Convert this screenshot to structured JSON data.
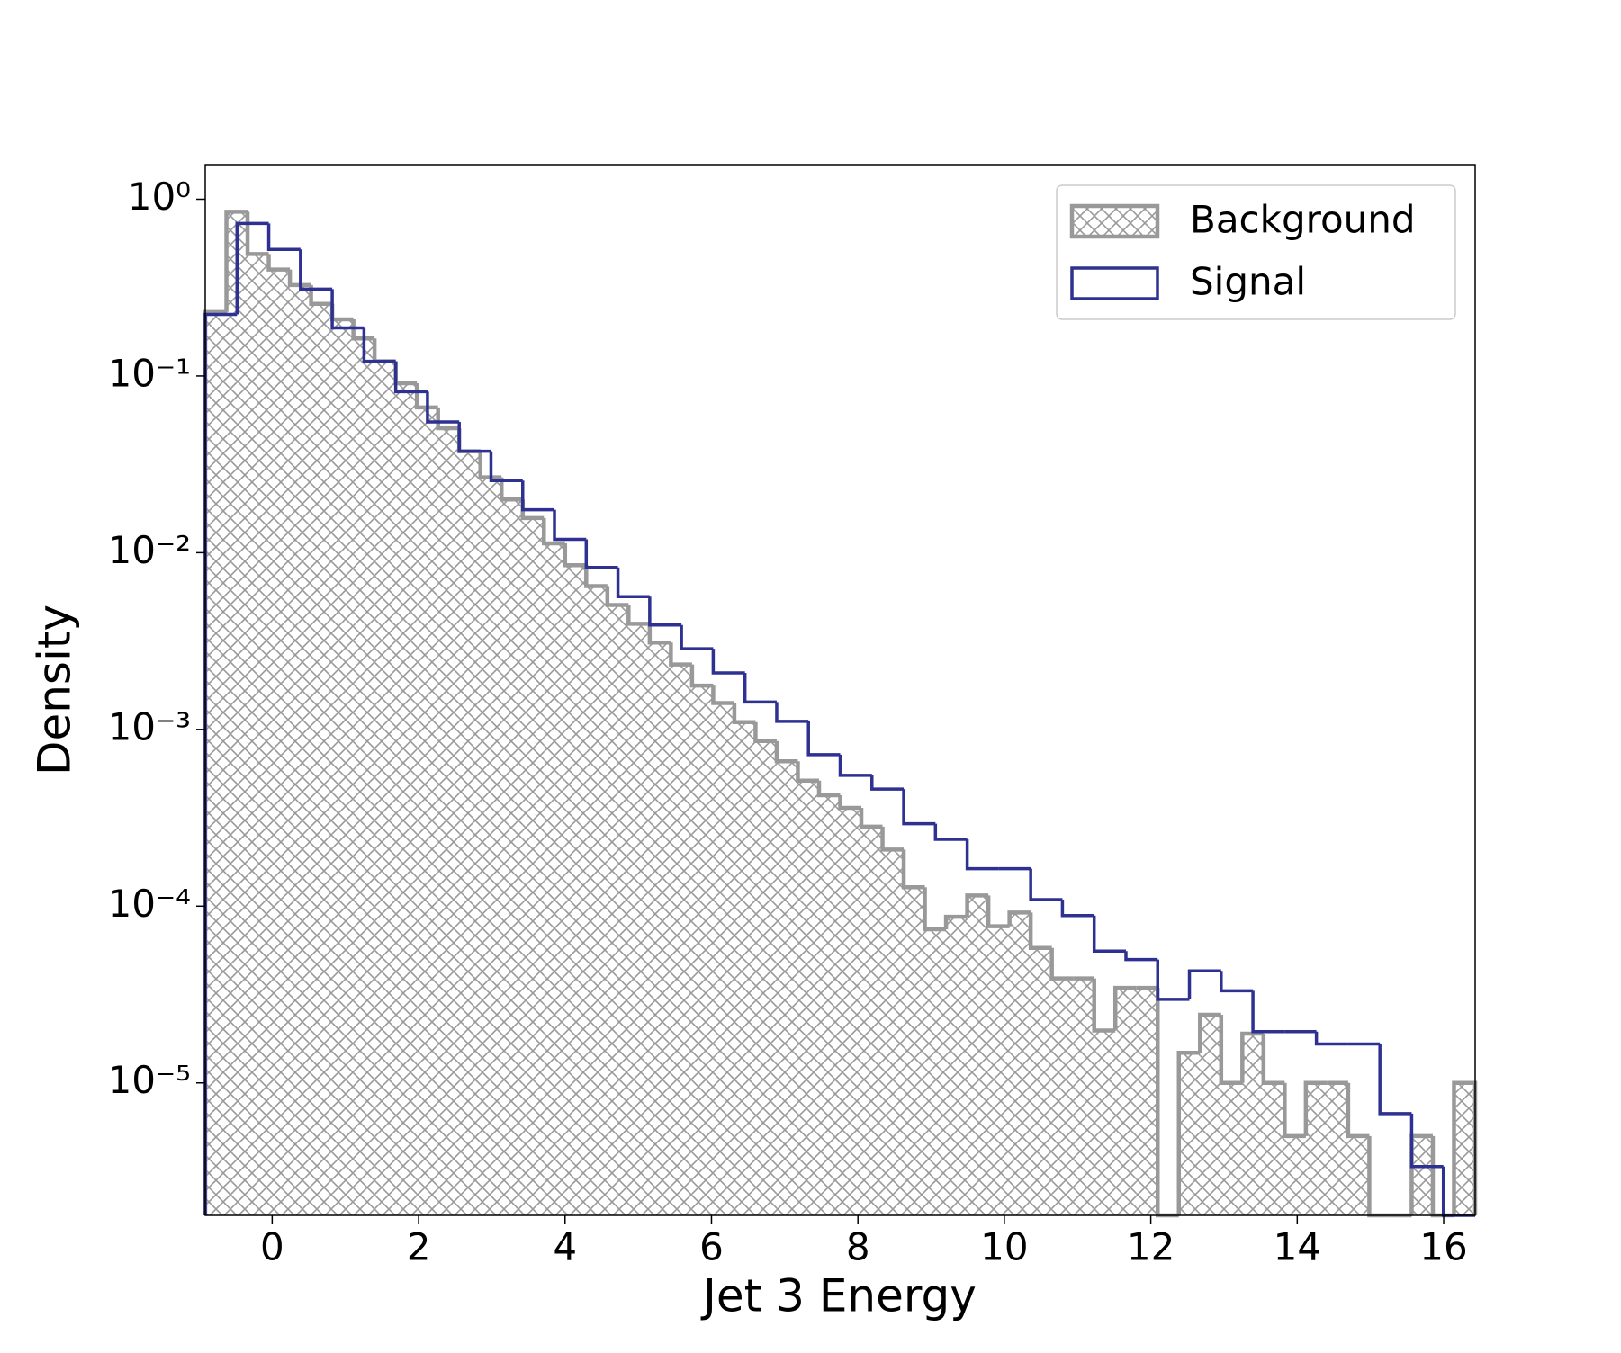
{
  "chart_data": {
    "type": "histogram",
    "xlabel": "Jet 3 Energy",
    "ylabel": "Density",
    "xlim": [
      -0.914,
      16.43
    ],
    "ylim": [
      1.78e-06,
      1.57
    ],
    "xticks": [
      0,
      2,
      4,
      6,
      8,
      10,
      12,
      14,
      16
    ],
    "yticks": [
      {
        "value": 1,
        "label": "10⁰"
      },
      {
        "value": 0.1,
        "label": "10⁻¹"
      },
      {
        "value": 0.01,
        "label": "10⁻²"
      },
      {
        "value": 0.001,
        "label": "10⁻³"
      },
      {
        "value": 0.0001,
        "label": "10⁻⁴"
      },
      {
        "value": 1e-05,
        "label": "10⁻⁵"
      }
    ],
    "ylog": true,
    "legend": "upper right",
    "series": [
      {
        "name": "Background",
        "color": "#999999",
        "hatch": true,
        "bins": [
          -0.914,
          -0.6249,
          -0.3359,
          -0.0468,
          0.2423,
          0.5313,
          0.8204,
          1.1095,
          1.3985,
          1.6876,
          1.9767,
          2.2657,
          2.5548,
          2.8439,
          3.1329,
          3.422,
          3.7111,
          4.0001,
          4.2892,
          4.5783,
          4.8673,
          5.1564,
          5.4455,
          5.7345,
          6.0236,
          6.3127,
          6.6017,
          6.8908,
          7.1799,
          7.4689,
          7.758,
          8.0471,
          8.3361,
          8.6252,
          8.9143,
          9.2033,
          9.4924,
          9.7815,
          10.0705,
          10.3596,
          10.6487,
          10.9377,
          11.2268,
          11.5159,
          11.8049,
          12.094,
          12.3831,
          12.6721,
          12.9612,
          13.2503,
          13.5393,
          13.8284,
          14.1175,
          14.4065,
          14.6956,
          14.9847,
          15.2737,
          15.5628,
          15.8519,
          16.1409,
          16.43
        ],
        "values": [
          0.23,
          0.85,
          0.49,
          0.4,
          0.327,
          0.256,
          0.209,
          0.163,
          0.121,
          0.091,
          0.0664,
          0.0506,
          0.0375,
          0.0267,
          0.02,
          0.0157,
          0.0113,
          0.0085,
          0.00647,
          0.00506,
          0.00396,
          0.0031,
          0.00233,
          0.00177,
          0.00141,
          0.0011,
          0.00086,
          0.00066,
          0.000513,
          0.000424,
          0.00036,
          0.000282,
          0.000209,
          0.000128,
          7.4e-05,
          8.7e-05,
          0.000115,
          7.7e-05,
          9.2e-05,
          5.8e-05,
          3.9e-05,
          3.9e-05,
          1.98e-05,
          3.45e-05,
          3.45e-05,
          0,
          1.48e-05,
          2.43e-05,
          1e-05,
          1.9e-05,
          1e-05,
          5e-06,
          1e-05,
          1e-05,
          5e-06,
          0,
          0,
          5e-06,
          0,
          1e-05
        ]
      },
      {
        "name": "Signal",
        "color": "#2e3192",
        "hatch": false,
        "bins": [
          -0.914,
          -0.4804,
          -0.0468,
          0.3868,
          0.8204,
          1.254,
          1.6876,
          2.1212,
          2.5548,
          2.9884,
          3.422,
          3.8556,
          4.2892,
          4.7228,
          5.1564,
          5.59,
          6.0236,
          6.4572,
          6.8908,
          7.3244,
          7.758,
          8.1916,
          8.6252,
          9.0588,
          9.4924,
          9.926,
          10.3596,
          10.7932,
          11.2268,
          11.6604,
          12.094,
          12.5276,
          12.9612,
          13.3948,
          13.8284,
          14.262,
          14.6956,
          15.1292,
          15.5628,
          15.9964,
          16.43
        ],
        "values": [
          0.223,
          0.73,
          0.52,
          0.31,
          0.187,
          0.121,
          0.0815,
          0.055,
          0.0375,
          0.0256,
          0.0175,
          0.0119,
          0.00826,
          0.00564,
          0.0039,
          0.00286,
          0.00209,
          0.00143,
          0.00111,
          0.00072,
          0.00055,
          0.00046,
          0.000293,
          0.000239,
          0.000163,
          0.000163,
          0.000109,
          8.85e-05,
          5.57e-05,
          4.99e-05,
          2.97e-05,
          4.3e-05,
          3.32e-05,
          1.95e-05,
          1.95e-05,
          1.66e-05,
          1.66e-05,
          6.7e-06,
          3.36e-06,
          0
        ]
      }
    ]
  }
}
